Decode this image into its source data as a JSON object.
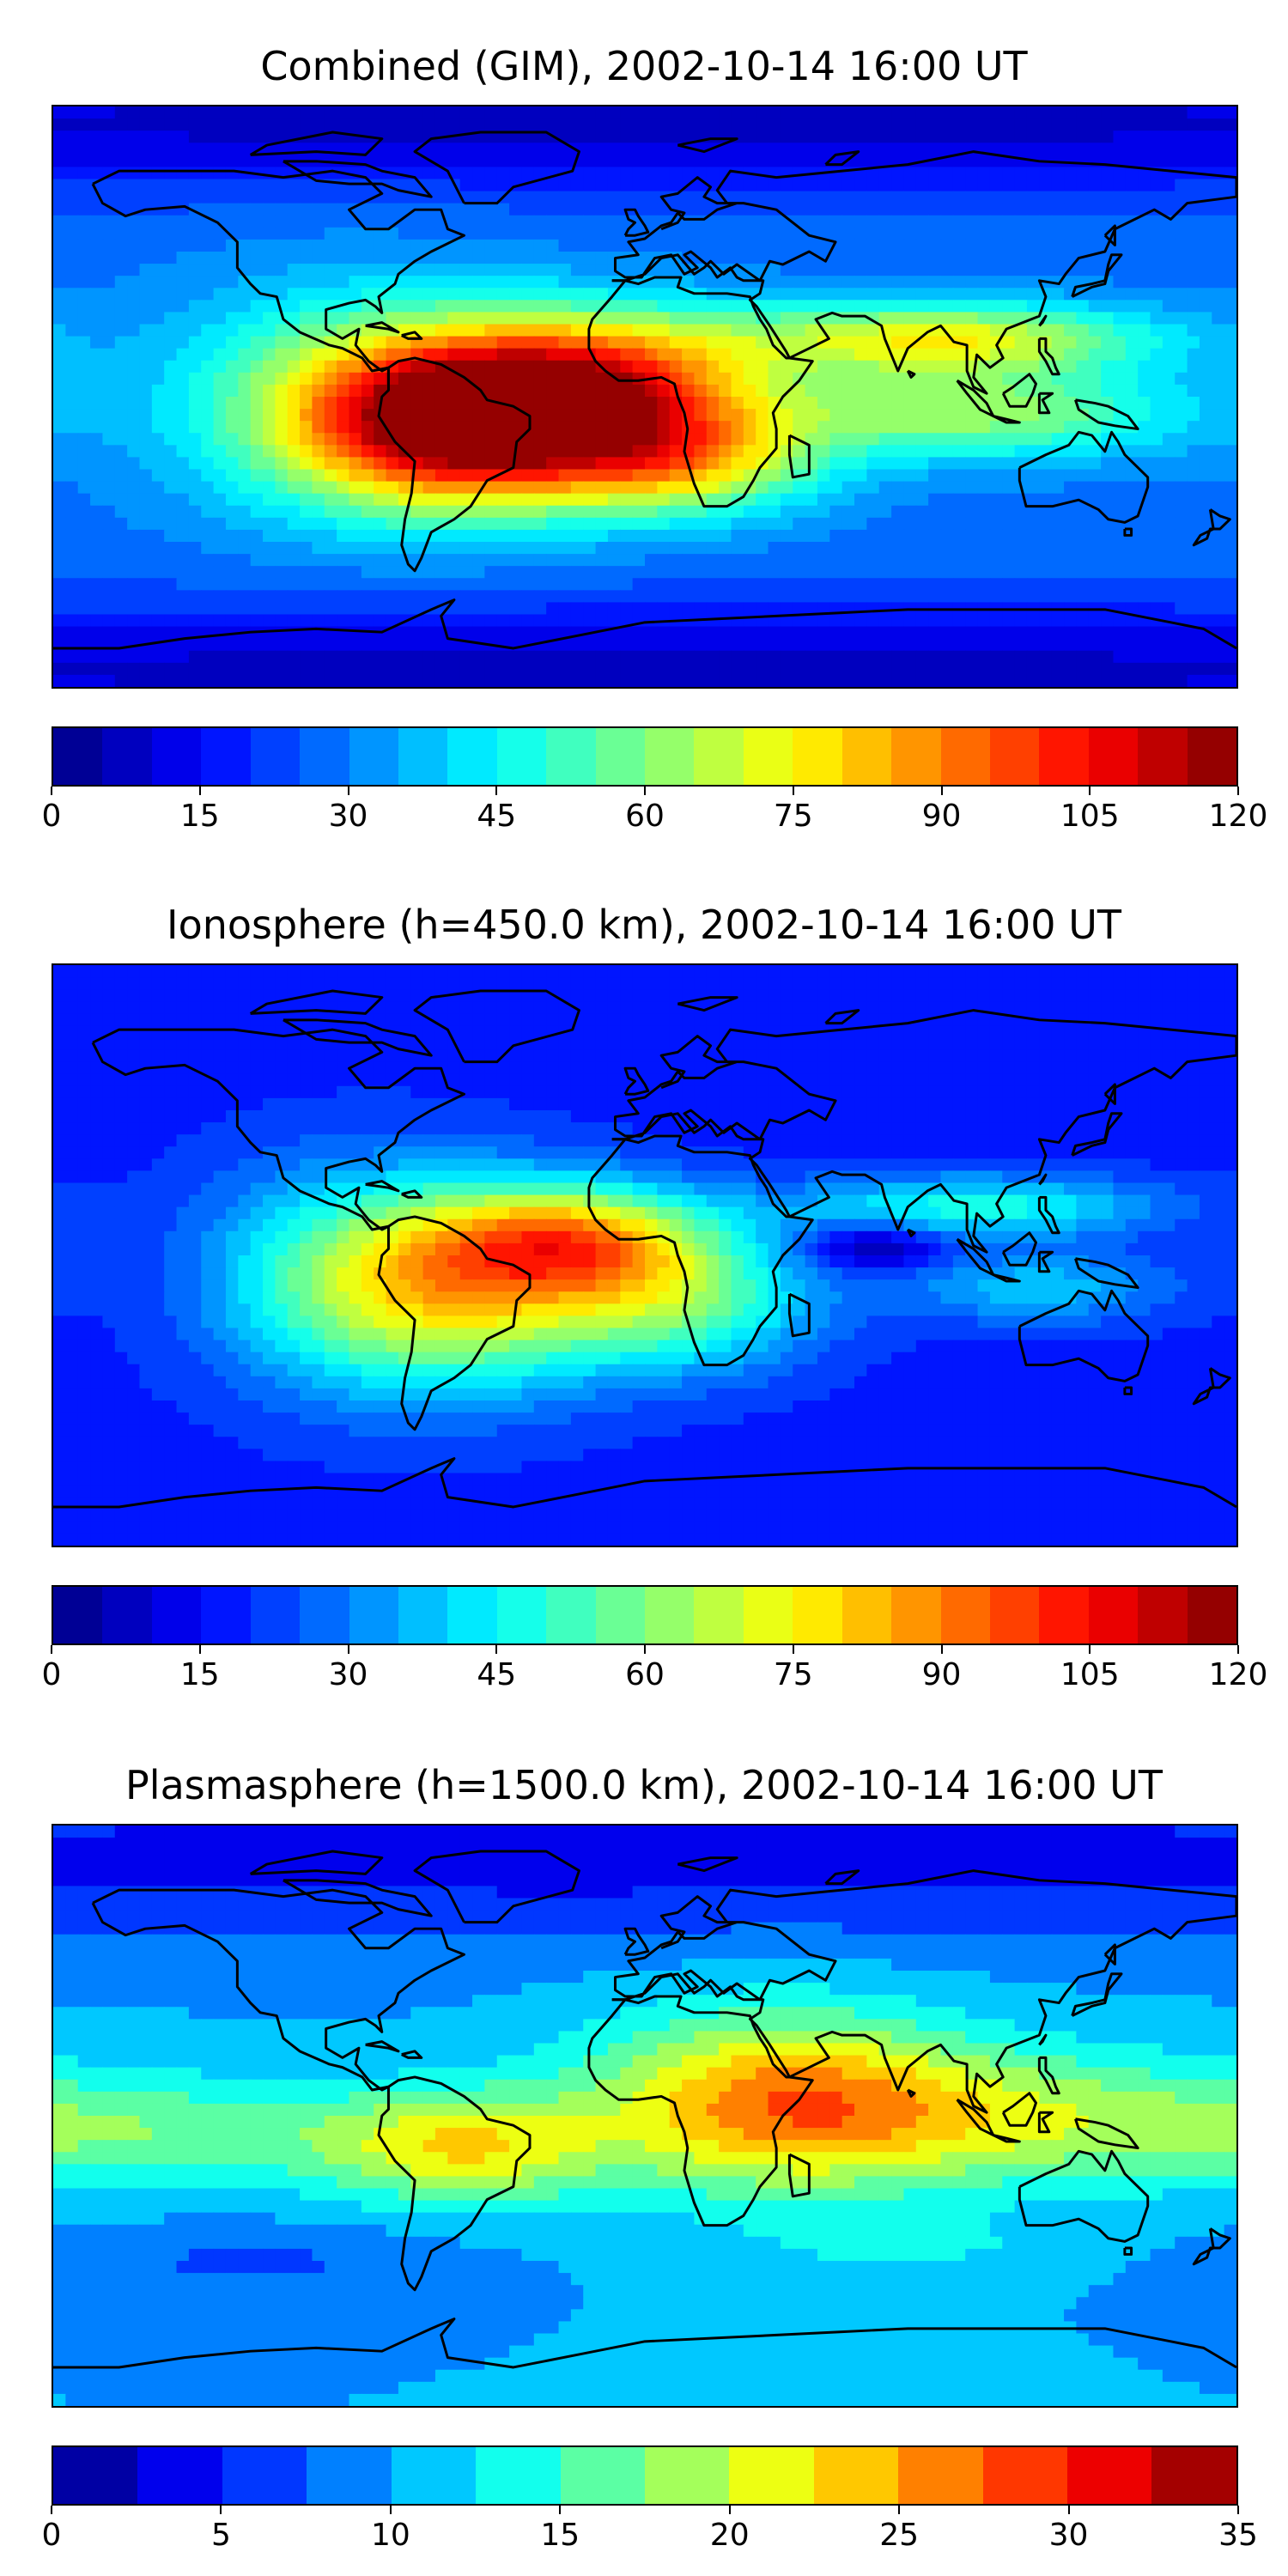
{
  "panels": [
    {
      "title": "Combined (GIM), 2002-10-14 16:00 UT",
      "colorbar": {
        "min": 0,
        "max": 120,
        "levels": 24,
        "ticks": [
          "0",
          "15",
          "30",
          "45",
          "60",
          "75",
          "90",
          "105",
          "120"
        ]
      },
      "field": {
        "base": 28,
        "blobs": [
          {
            "lon": -55,
            "lat": -8,
            "sx": 35,
            "sy": 18,
            "a": 85
          },
          {
            "lon": -10,
            "lat": 5,
            "sx": 35,
            "sy": 15,
            "a": 55
          },
          {
            "lon": 10,
            "lat": -20,
            "sx": 30,
            "sy": 12,
            "a": 45
          },
          {
            "lon": 90,
            "lat": 18,
            "sx": 45,
            "sy": 8,
            "a": 45
          },
          {
            "lon": 100,
            "lat": -5,
            "sx": 45,
            "sy": 10,
            "a": 35
          },
          {
            "lon": -90,
            "lat": 0,
            "sx": 40,
            "sy": 25,
            "a": 25
          },
          {
            "lon": 0,
            "lat": 85,
            "sx": 400,
            "sy": 15,
            "a": -20
          },
          {
            "lon": 0,
            "lat": -85,
            "sx": 400,
            "sy": 15,
            "a": -20
          }
        ]
      }
    },
    {
      "title": "Ionosphere  (h=450.0 km), 2002-10-14 16:00 UT",
      "colorbar": {
        "min": 0,
        "max": 120,
        "levels": 24,
        "ticks": [
          "0",
          "15",
          "30",
          "45",
          "60",
          "75",
          "90",
          "105",
          "120"
        ]
      },
      "field": {
        "base": 18,
        "blobs": [
          {
            "lon": -60,
            "lat": -10,
            "sx": 35,
            "sy": 22,
            "a": 55
          },
          {
            "lon": -20,
            "lat": 5,
            "sx": 30,
            "sy": 12,
            "a": 50
          },
          {
            "lon": 10,
            "lat": -15,
            "sx": 30,
            "sy": 15,
            "a": 35
          },
          {
            "lon": 100,
            "lat": 15,
            "sx": 40,
            "sy": 7,
            "a": 30
          },
          {
            "lon": 70,
            "lat": 3,
            "sx": 15,
            "sy": 5,
            "a": -20
          },
          {
            "lon": 120,
            "lat": -10,
            "sx": 30,
            "sy": 8,
            "a": 20
          },
          {
            "lon": -100,
            "lat": -5,
            "sx": 30,
            "sy": 25,
            "a": 15
          }
        ]
      }
    },
    {
      "title": "Plasmasphere (h=1500.0 km), 2002-10-14 16:00 UT",
      "colorbar": {
        "min": 0,
        "max": 35,
        "levels": 14,
        "ticks": [
          "0",
          "5",
          "10",
          "15",
          "20",
          "25",
          "30",
          "35"
        ]
      },
      "field": {
        "base": 10,
        "blobs": [
          {
            "lon": 40,
            "lat": 5,
            "sx": 40,
            "sy": 20,
            "a": 13
          },
          {
            "lon": -55,
            "lat": -10,
            "sx": 30,
            "sy": 12,
            "a": 11
          },
          {
            "lon": 100,
            "lat": 0,
            "sx": 60,
            "sy": 15,
            "a": 8
          },
          {
            "lon": -150,
            "lat": -5,
            "sx": 60,
            "sy": 12,
            "a": 6
          },
          {
            "lon": 0,
            "lat": 80,
            "sx": 400,
            "sy": 18,
            "a": -6
          },
          {
            "lon": -120,
            "lat": -45,
            "sx": 40,
            "sy": 8,
            "a": -3
          },
          {
            "lon": 80,
            "lat": -40,
            "sx": 30,
            "sy": 6,
            "a": 3
          }
        ]
      }
    }
  ]
}
